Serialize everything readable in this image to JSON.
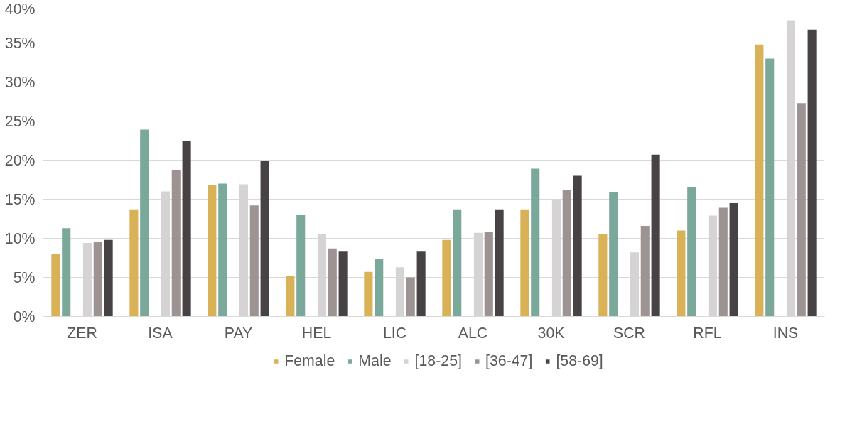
{
  "chart_data": {
    "type": "bar",
    "categories": [
      "ZER",
      "ISA",
      "PAY",
      "HEL",
      "LIC",
      "ALC",
      "30K",
      "SCR",
      "RFL",
      "INS"
    ],
    "series": [
      {
        "name": "Female",
        "color": "#d9b157",
        "values": [
          8.0,
          13.7,
          16.8,
          5.2,
          5.7,
          9.8,
          13.7,
          10.5,
          11.0,
          34.8
        ]
      },
      {
        "name": "Male",
        "color": "#7aa89b",
        "values": [
          11.3,
          23.9,
          17.0,
          13.0,
          7.4,
          13.7,
          18.9,
          15.9,
          16.6,
          33.0
        ]
      },
      {
        "name": "[18-25]",
        "color": "#d5d3d3",
        "values": [
          9.4,
          16.0,
          16.9,
          10.5,
          6.3,
          10.7,
          15.0,
          8.2,
          12.9,
          37.9
        ]
      },
      {
        "name": "[36-47]",
        "color": "#9e9393",
        "values": [
          9.5,
          18.7,
          14.2,
          8.7,
          5.0,
          10.8,
          16.2,
          11.6,
          13.9,
          27.3
        ]
      },
      {
        "name": "[58-69]",
        "color": "#474243",
        "values": [
          9.8,
          22.4,
          19.9,
          8.3,
          8.3,
          13.7,
          18.0,
          20.7,
          14.5,
          36.7
        ]
      }
    ],
    "ylim": [
      0,
      40
    ],
    "yticks": [
      {
        "value": 0,
        "label": "0%"
      },
      {
        "value": 5,
        "label": "5%"
      },
      {
        "value": 10,
        "label": "10%"
      },
      {
        "value": 15,
        "label": "15%"
      },
      {
        "value": 20,
        "label": "20%"
      },
      {
        "value": 25,
        "label": "25%"
      },
      {
        "value": 30,
        "label": "30%"
      },
      {
        "value": 35,
        "label": "35%"
      },
      {
        "value": 40,
        "label": "40%"
      }
    ],
    "grid": "y",
    "legend": "bottom"
  }
}
